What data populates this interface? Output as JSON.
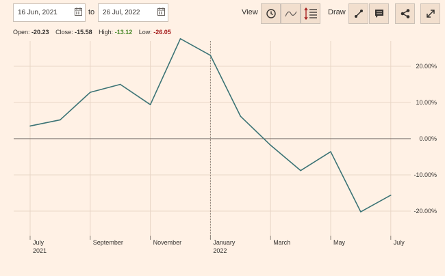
{
  "range": {
    "from": "16 Jun, 2021",
    "to_label": "to",
    "to": "26 Jul, 2022"
  },
  "toolbar": {
    "view_label": "View",
    "draw_label": "Draw",
    "icons": [
      "clock-icon",
      "line-chart-icon",
      "indicators-icon",
      "draw-line-icon",
      "annotation-icon",
      "share-icon",
      "expand-icon"
    ]
  },
  "stats": {
    "open_label": "Open:",
    "open": "-20.23",
    "close_label": "Close:",
    "close": "-15.58",
    "high_label": "High:",
    "high": "-13.12",
    "low_label": "Low:",
    "low": "-26.05"
  },
  "colors": {
    "background": "#fff1e5",
    "line": "#3b7375",
    "high": "#4d8a2d",
    "low": "#a41a1a",
    "baseline": "#66605c"
  },
  "chart_data": {
    "type": "line",
    "y_unit": "%",
    "ylim": [
      -27,
      28
    ],
    "yticks": [
      "20.00%",
      "10.00%",
      "0.00%",
      "-10.00%",
      "-20.00%"
    ],
    "ytick_values": [
      20,
      10,
      0,
      -10,
      -20
    ],
    "x_labels": [
      {
        "label": "July",
        "sub": "2021",
        "x": 0
      },
      {
        "label": "September",
        "sub": "",
        "x": 2
      },
      {
        "label": "November",
        "sub": "",
        "x": 4
      },
      {
        "label": "January",
        "sub": "2022",
        "x": 6
      },
      {
        "label": "March",
        "sub": "",
        "x": 8
      },
      {
        "label": "May",
        "sub": "",
        "x": 10
      },
      {
        "label": "July",
        "sub": "",
        "x": 12
      }
    ],
    "series": [
      {
        "x": [
          0,
          1,
          2,
          3,
          4,
          5,
          6,
          7,
          8,
          9,
          10,
          11,
          12
        ],
        "values": [
          3.5,
          5.2,
          12.8,
          15.0,
          9.4,
          27.6,
          23.0,
          6.2,
          -1.8,
          -8.8,
          -3.6,
          -20.2,
          -15.6
        ]
      }
    ],
    "grid": true,
    "year_divider_x": 6
  }
}
